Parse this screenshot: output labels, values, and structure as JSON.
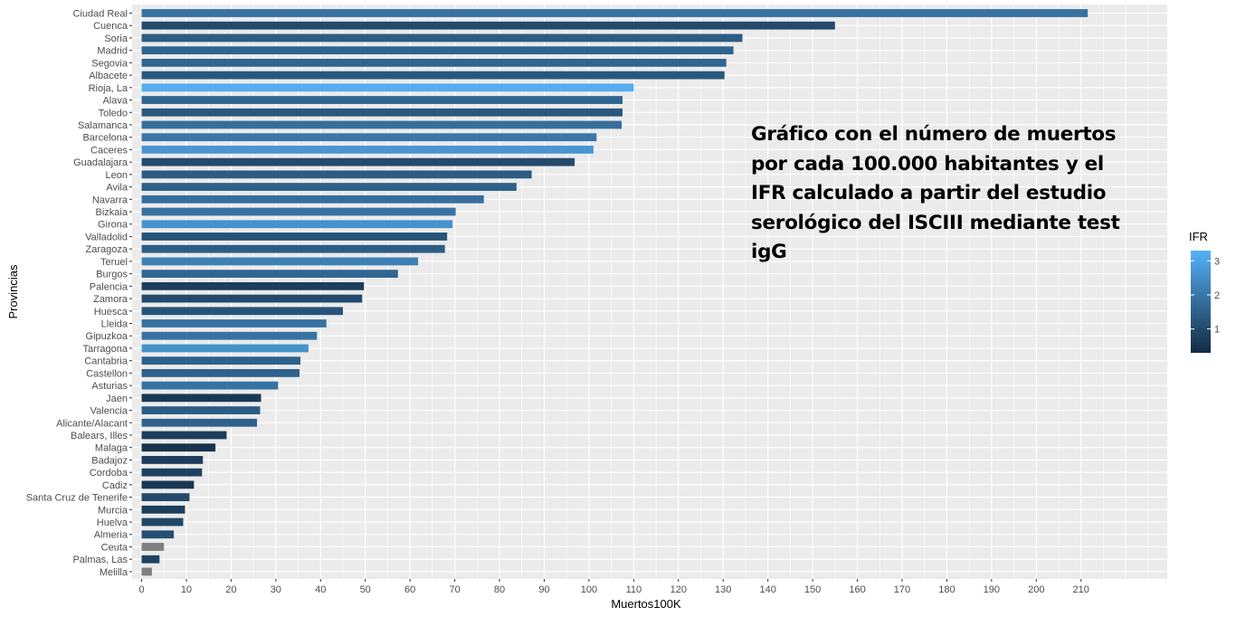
{
  "chart_data": {
    "type": "bar",
    "orientation": "horizontal",
    "xlabel": "Muertos100K",
    "ylabel": "Provincias",
    "xlim": [
      0,
      230
    ],
    "x_ticks": [
      0,
      10,
      20,
      30,
      40,
      50,
      60,
      70,
      80,
      90,
      100,
      110,
      120,
      130,
      140,
      150,
      160,
      170,
      180,
      190,
      200,
      210
    ],
    "legend": {
      "title": "IFR",
      "ticks": [
        1,
        2,
        3
      ],
      "range": [
        0.3,
        3.3
      ],
      "low_color": "#132B43",
      "high_color": "#56B1F7",
      "placement": "right"
    },
    "na_color": "#7f7f7f",
    "annotation": "Gráfico con el número de muertos por cada 100.000 habitantes y el IFR calculado a partir del estudio serológico del ISCIII mediante test igG",
    "categories": [
      "Ciudad Real",
      "Cuenca",
      "Soria",
      "Madrid",
      "Segovia",
      "Albacete",
      "Rioja, La",
      "Alava",
      "Toledo",
      "Salamanca",
      "Barcelona",
      "Caceres",
      "Guadalajara",
      "Leon",
      "Avila",
      "Navarra",
      "Bizkaia",
      "Girona",
      "Valladolid",
      "Zaragoza",
      "Teruel",
      "Burgos",
      "Palencia",
      "Zamora",
      "Huesca",
      "Lleida",
      "Gipuzkoa",
      "Tarragona",
      "Cantabria",
      "Castellon",
      "Asturias",
      "Jaen",
      "Valencia",
      "Alicante/Alacant",
      "Balears, Illes",
      "Malaga",
      "Badajoz",
      "Cordoba",
      "Cadiz",
      "Santa Cruz de Tenerife",
      "Murcia",
      "Huelva",
      "Almeria",
      "Ceuta",
      "Palmas, Las",
      "Melilla"
    ],
    "values": [
      211.5,
      155,
      134.3,
      132.3,
      130.7,
      130.3,
      110,
      107.5,
      107.5,
      107.3,
      101.7,
      101,
      96.8,
      87.2,
      83.8,
      76.5,
      70.2,
      69.5,
      68.3,
      67.8,
      61.8,
      57.3,
      49.7,
      49.3,
      45,
      41.3,
      39.2,
      37.3,
      35.5,
      35.3,
      30.5,
      26.7,
      26.5,
      25.8,
      19,
      16.5,
      13.7,
      13.5,
      11.7,
      10.7,
      9.7,
      9.3,
      7.2,
      5,
      4,
      2.3
    ],
    "ifr": [
      1.9,
      1.0,
      1.4,
      1.6,
      1.6,
      1.3,
      3.2,
      1.6,
      1.3,
      1.8,
      2.0,
      2.7,
      1.0,
      1.4,
      1.5,
      1.8,
      1.9,
      2.6,
      1.2,
      1.4,
      2.2,
      1.6,
      0.7,
      1.0,
      1.2,
      1.9,
      1.9,
      2.6,
      1.5,
      1.5,
      1.9,
      0.6,
      1.4,
      1.5,
      0.7,
      0.5,
      0.7,
      0.8,
      0.6,
      1.0,
      0.7,
      0.9,
      1.1,
      null,
      0.8,
      null
    ]
  }
}
